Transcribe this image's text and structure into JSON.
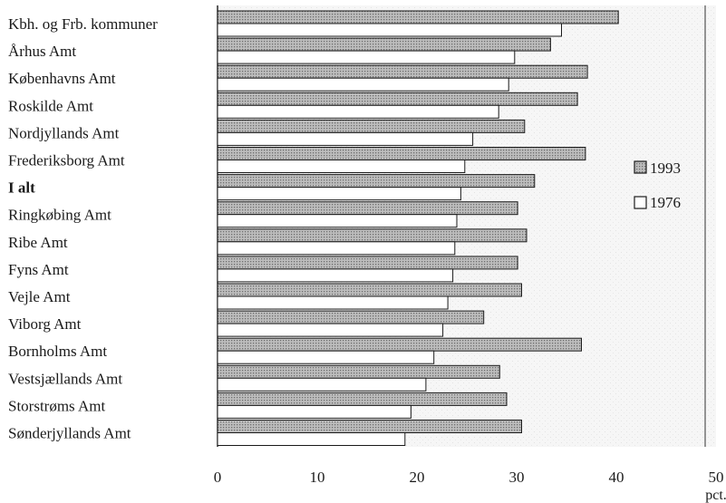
{
  "chart_data": {
    "type": "bar",
    "orientation": "horizontal",
    "categories": [
      "Kbh. og Frb. kommuner",
      "Århus Amt",
      "Københavns Amt",
      "Roskilde Amt",
      "Nordjyllands Amt",
      "Frederiksborg Amt",
      "I alt",
      "Ringkøbing Amt",
      "Ribe Amt",
      "Fyns Amt",
      "Vejle Amt",
      "Viborg Amt",
      "Bornholms Amt",
      "Vestsjællands Amt",
      "Storstrøms Amt",
      "Sønderjyllands Amt"
    ],
    "bold_categories": [
      "I alt"
    ],
    "series": [
      {
        "name": "1993",
        "pattern": "dotted-grey",
        "values": [
          40.2,
          33.4,
          37.1,
          36.1,
          30.8,
          36.9,
          31.8,
          30.1,
          31.0,
          30.1,
          30.5,
          26.7,
          36.5,
          28.3,
          29.0,
          30.5
        ]
      },
      {
        "name": "1976",
        "pattern": "white",
        "values": [
          34.5,
          29.8,
          29.2,
          28.2,
          25.6,
          24.8,
          24.4,
          24.0,
          23.8,
          23.6,
          23.1,
          22.6,
          21.7,
          20.9,
          19.4,
          18.8
        ]
      }
    ],
    "x_ticks": [
      "0",
      "10",
      "20",
      "30",
      "40",
      "50"
    ],
    "xlim": [
      0,
      50
    ],
    "x_unit": "pct.",
    "title": "",
    "xlabel": "",
    "ylabel": "",
    "grid": false,
    "legend_position": "right",
    "colors": {
      "bar_1993_fill": "#bdbdbd",
      "bar_1993_dot": "#6e6e6e",
      "bar_1976_fill": "#ffffff",
      "stroke": "#1a1a1a",
      "panel_background": "#f6f6f6"
    }
  }
}
